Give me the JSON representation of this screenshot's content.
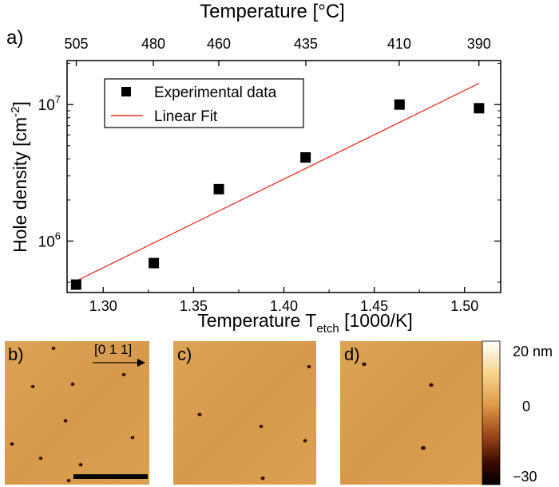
{
  "panel_labels": {
    "a": "a)",
    "b": "b)",
    "c": "c)",
    "d": "d)"
  },
  "chart_data": {
    "type": "scatter",
    "title": "",
    "top_axis": {
      "label": "Temperature [°C]",
      "ticks": [
        505,
        480,
        460,
        435,
        410,
        390
      ]
    },
    "xlabel": "Temperature T",
    "xlabel_sub": "etch",
    "xlabel_unit": " [1000/K]",
    "ylabel": "Hole density [cm",
    "ylabel_sup": "-2",
    "ylabel_end": "]",
    "xlim": [
      1.28,
      1.52
    ],
    "ylim": [
      420000,
      21000000
    ],
    "yscale": "log",
    "xticks": [
      1.3,
      1.35,
      1.4,
      1.45,
      1.5
    ],
    "xtick_labels": [
      "1.30",
      "1.35",
      "1.40",
      "1.45",
      "1.50"
    ],
    "yticks": [
      1000000,
      10000000
    ],
    "ytick_labels": [
      {
        "base": "10",
        "exp": "6"
      },
      {
        "base": "10",
        "exp": "7"
      }
    ],
    "legend_position": "top-left",
    "series": [
      {
        "name": "Experimental data",
        "kind": "scatter",
        "marker": "square",
        "color": "#000000",
        "x": [
          1.285,
          1.328,
          1.364,
          1.412,
          1.464,
          1.508
        ],
        "y": [
          480000,
          690000,
          2400000,
          4100000,
          10000000,
          9400000
        ]
      },
      {
        "name": "Linear Fit",
        "kind": "line",
        "color": "#e8302a",
        "x": [
          1.285,
          1.508
        ],
        "y": [
          510000,
          14300000
        ]
      }
    ]
  },
  "afm_images": {
    "orientation_label": "[0 1 1]",
    "colorbar": {
      "max_label": "20 nm",
      "mid_label": "0",
      "min_label": "−30"
    }
  },
  "colors": {
    "surface": "#d99c4d",
    "colorbar_stops": [
      "#ffffff",
      "#f7d58f",
      "#dc9a45",
      "#a0481c",
      "#3a0a00",
      "#000000"
    ]
  }
}
